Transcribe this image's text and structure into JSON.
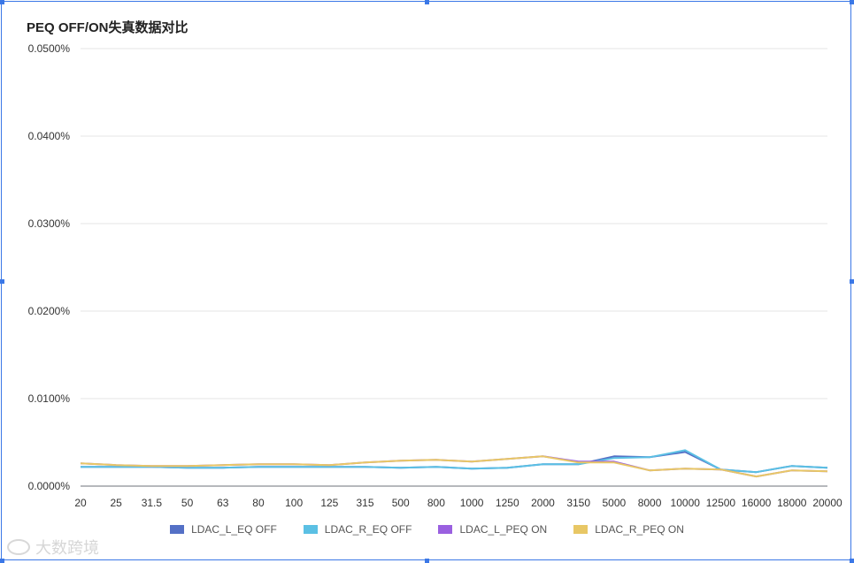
{
  "title": "PEQ OFF/ON失真数据对比",
  "watermark": "大数跨境",
  "chart_data": {
    "type": "line",
    "title": "PEQ OFF/ON失真数据对比",
    "categories": [
      "20",
      "25",
      "31.5",
      "50",
      "63",
      "80",
      "100",
      "125",
      "315",
      "500",
      "800",
      "1000",
      "1250",
      "2000",
      "3150",
      "5000",
      "8000",
      "10000",
      "12500",
      "16000",
      "18000",
      "20000"
    ],
    "y_tick_labels": [
      "0.0000%",
      "0.0100%",
      "0.0200%",
      "0.0300%",
      "0.0400%",
      "0.0500%"
    ],
    "ylim": [
      0,
      0.05
    ],
    "grid": true,
    "legend_position": "bottom",
    "series": [
      {
        "name": "LDAC_L_EQ OFF",
        "color": "#5470c6",
        "values": [
          0.0022,
          0.0022,
          0.0022,
          0.0021,
          0.0021,
          0.0022,
          0.0022,
          0.0022,
          0.0022,
          0.0021,
          0.0022,
          0.002,
          0.0021,
          0.0025,
          0.0025,
          0.0034,
          0.0033,
          0.0039,
          0.0019,
          0.0016,
          0.0023,
          0.0021
        ]
      },
      {
        "name": "LDAC_R_EQ OFF",
        "color": "#5bc0e4",
        "values": [
          0.0022,
          0.0022,
          0.0022,
          0.0021,
          0.0021,
          0.0022,
          0.0022,
          0.0022,
          0.0022,
          0.0021,
          0.0022,
          0.002,
          0.0021,
          0.0025,
          0.0025,
          0.0032,
          0.0033,
          0.0041,
          0.0019,
          0.0016,
          0.0023,
          0.0021
        ]
      },
      {
        "name": "LDAC_L_PEQ ON",
        "color": "#9a60e0",
        "values": [
          0.0026,
          0.0024,
          0.0023,
          0.0023,
          0.0024,
          0.0025,
          0.0025,
          0.0024,
          0.0027,
          0.0029,
          0.003,
          0.0028,
          0.0031,
          0.0034,
          0.0028,
          0.0028,
          0.0018,
          0.002,
          0.0019,
          0.0011,
          0.0018,
          0.0017
        ]
      },
      {
        "name": "LDAC_R_PEQ ON",
        "color": "#e8c765",
        "values": [
          0.0026,
          0.0024,
          0.0023,
          0.0023,
          0.0024,
          0.0025,
          0.0025,
          0.0024,
          0.0027,
          0.0029,
          0.003,
          0.0028,
          0.0031,
          0.0034,
          0.0027,
          0.0027,
          0.0018,
          0.002,
          0.0019,
          0.0011,
          0.0018,
          0.0017
        ]
      }
    ]
  }
}
